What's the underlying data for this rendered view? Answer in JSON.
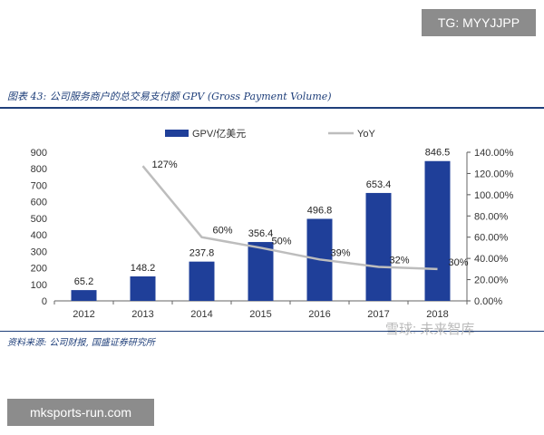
{
  "header_tag": "TG: MYYJJPP",
  "figure_title": "图表 43: 公司服务商户的总交易支付额 GPV (Gross Payment Volume)",
  "source_note": "资料来源: 公司财报, 国盛证券研究所",
  "watermark": "雪球: 未来智库",
  "site_tag": "mksports-run.com",
  "colors": {
    "bar": "#1f3f99",
    "line": "#bdbdbd",
    "accent": "#1f3f7a"
  },
  "chart_data": {
    "type": "bar",
    "categories": [
      "2012",
      "2013",
      "2014",
      "2015",
      "2016",
      "2017",
      "2018"
    ],
    "series": [
      {
        "name": "GPV/亿美元",
        "type": "bar",
        "axis": "left",
        "values": [
          65.2,
          148.2,
          237.8,
          356.4,
          496.8,
          653.4,
          846.5
        ],
        "labels": [
          "65.2",
          "148.2",
          "237.8",
          "356.4",
          "496.8",
          "653.4",
          "846.5"
        ]
      },
      {
        "name": "YoY",
        "type": "line",
        "axis": "right",
        "values": [
          null,
          1.27,
          0.6,
          0.5,
          0.39,
          0.32,
          0.3
        ],
        "labels": [
          "",
          "127%",
          "60%",
          "50%",
          "39%",
          "32%",
          "30%"
        ]
      }
    ],
    "ylim_left": [
      0,
      900
    ],
    "yticks_left": [
      "0",
      "100",
      "200",
      "300",
      "400",
      "500",
      "600",
      "700",
      "800",
      "900"
    ],
    "ylim_right": [
      0,
      1.4
    ],
    "yticks_right": [
      "0.00%",
      "20.00%",
      "40.00%",
      "60.00%",
      "80.00%",
      "100.00%",
      "120.00%",
      "140.00%"
    ],
    "legend_position": "top"
  }
}
